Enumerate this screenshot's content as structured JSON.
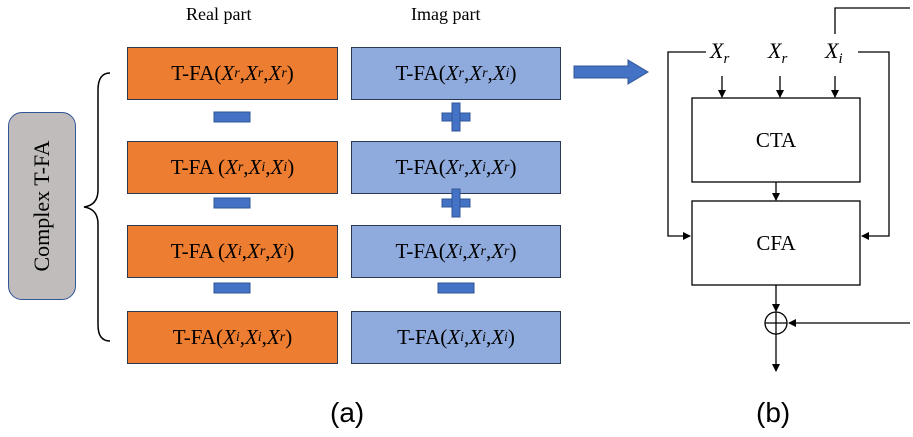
{
  "headers": {
    "real": "Real part",
    "imag": "Imag part"
  },
  "side_label": "Complex T-FA",
  "rows": [
    {
      "real": {
        "prefix": "T-FA(",
        "args": [
          [
            "X",
            "r"
          ],
          [
            "X",
            "r"
          ],
          [
            "X",
            "r"
          ]
        ]
      },
      "imag": {
        "prefix": "T-FA(",
        "args": [
          [
            "X",
            "r"
          ],
          [
            "X",
            "r"
          ],
          [
            "X",
            "i"
          ]
        ]
      }
    },
    {
      "real": {
        "prefix": "T-FA (",
        "args": [
          [
            "X",
            "r"
          ],
          [
            "X",
            "i"
          ],
          [
            "X",
            "i"
          ]
        ]
      },
      "imag": {
        "prefix": "T-FA(",
        "args": [
          [
            "X",
            "r"
          ],
          [
            "X",
            "i"
          ],
          [
            "X",
            "r"
          ]
        ]
      }
    },
    {
      "real": {
        "prefix": "T-FA (",
        "args": [
          [
            "X",
            "i"
          ],
          [
            "X",
            "r"
          ],
          [
            "X",
            "i"
          ]
        ]
      },
      "imag": {
        "prefix": "T-FA(",
        "args": [
          [
            "X",
            "i"
          ],
          [
            "X",
            "r"
          ],
          [
            "X",
            "r"
          ]
        ]
      }
    },
    {
      "real": {
        "prefix": "T-FA(",
        "args": [
          [
            "X",
            "i"
          ],
          [
            "X",
            "i"
          ],
          [
            "X",
            "r"
          ]
        ]
      },
      "imag": {
        "prefix": "T-FA(",
        "args": [
          [
            "X",
            "i"
          ],
          [
            "X",
            "i"
          ],
          [
            "X",
            "i"
          ]
        ]
      }
    }
  ],
  "real_ops": [
    "minus",
    "minus",
    "minus"
  ],
  "imag_ops": [
    "plus",
    "plus",
    "minus"
  ],
  "panel_b": {
    "inputs": [
      [
        "X",
        "r"
      ],
      [
        "X",
        "r"
      ],
      [
        "X",
        "i"
      ]
    ],
    "cta_label": "CTA",
    "cfa_label": "CFA"
  },
  "captions": {
    "a": "(a)",
    "b": "(b)"
  },
  "colors": {
    "real": "#ed7d31",
    "imag": "#8faadc",
    "operator": "#4472c4",
    "arrow": "#4472c4"
  }
}
